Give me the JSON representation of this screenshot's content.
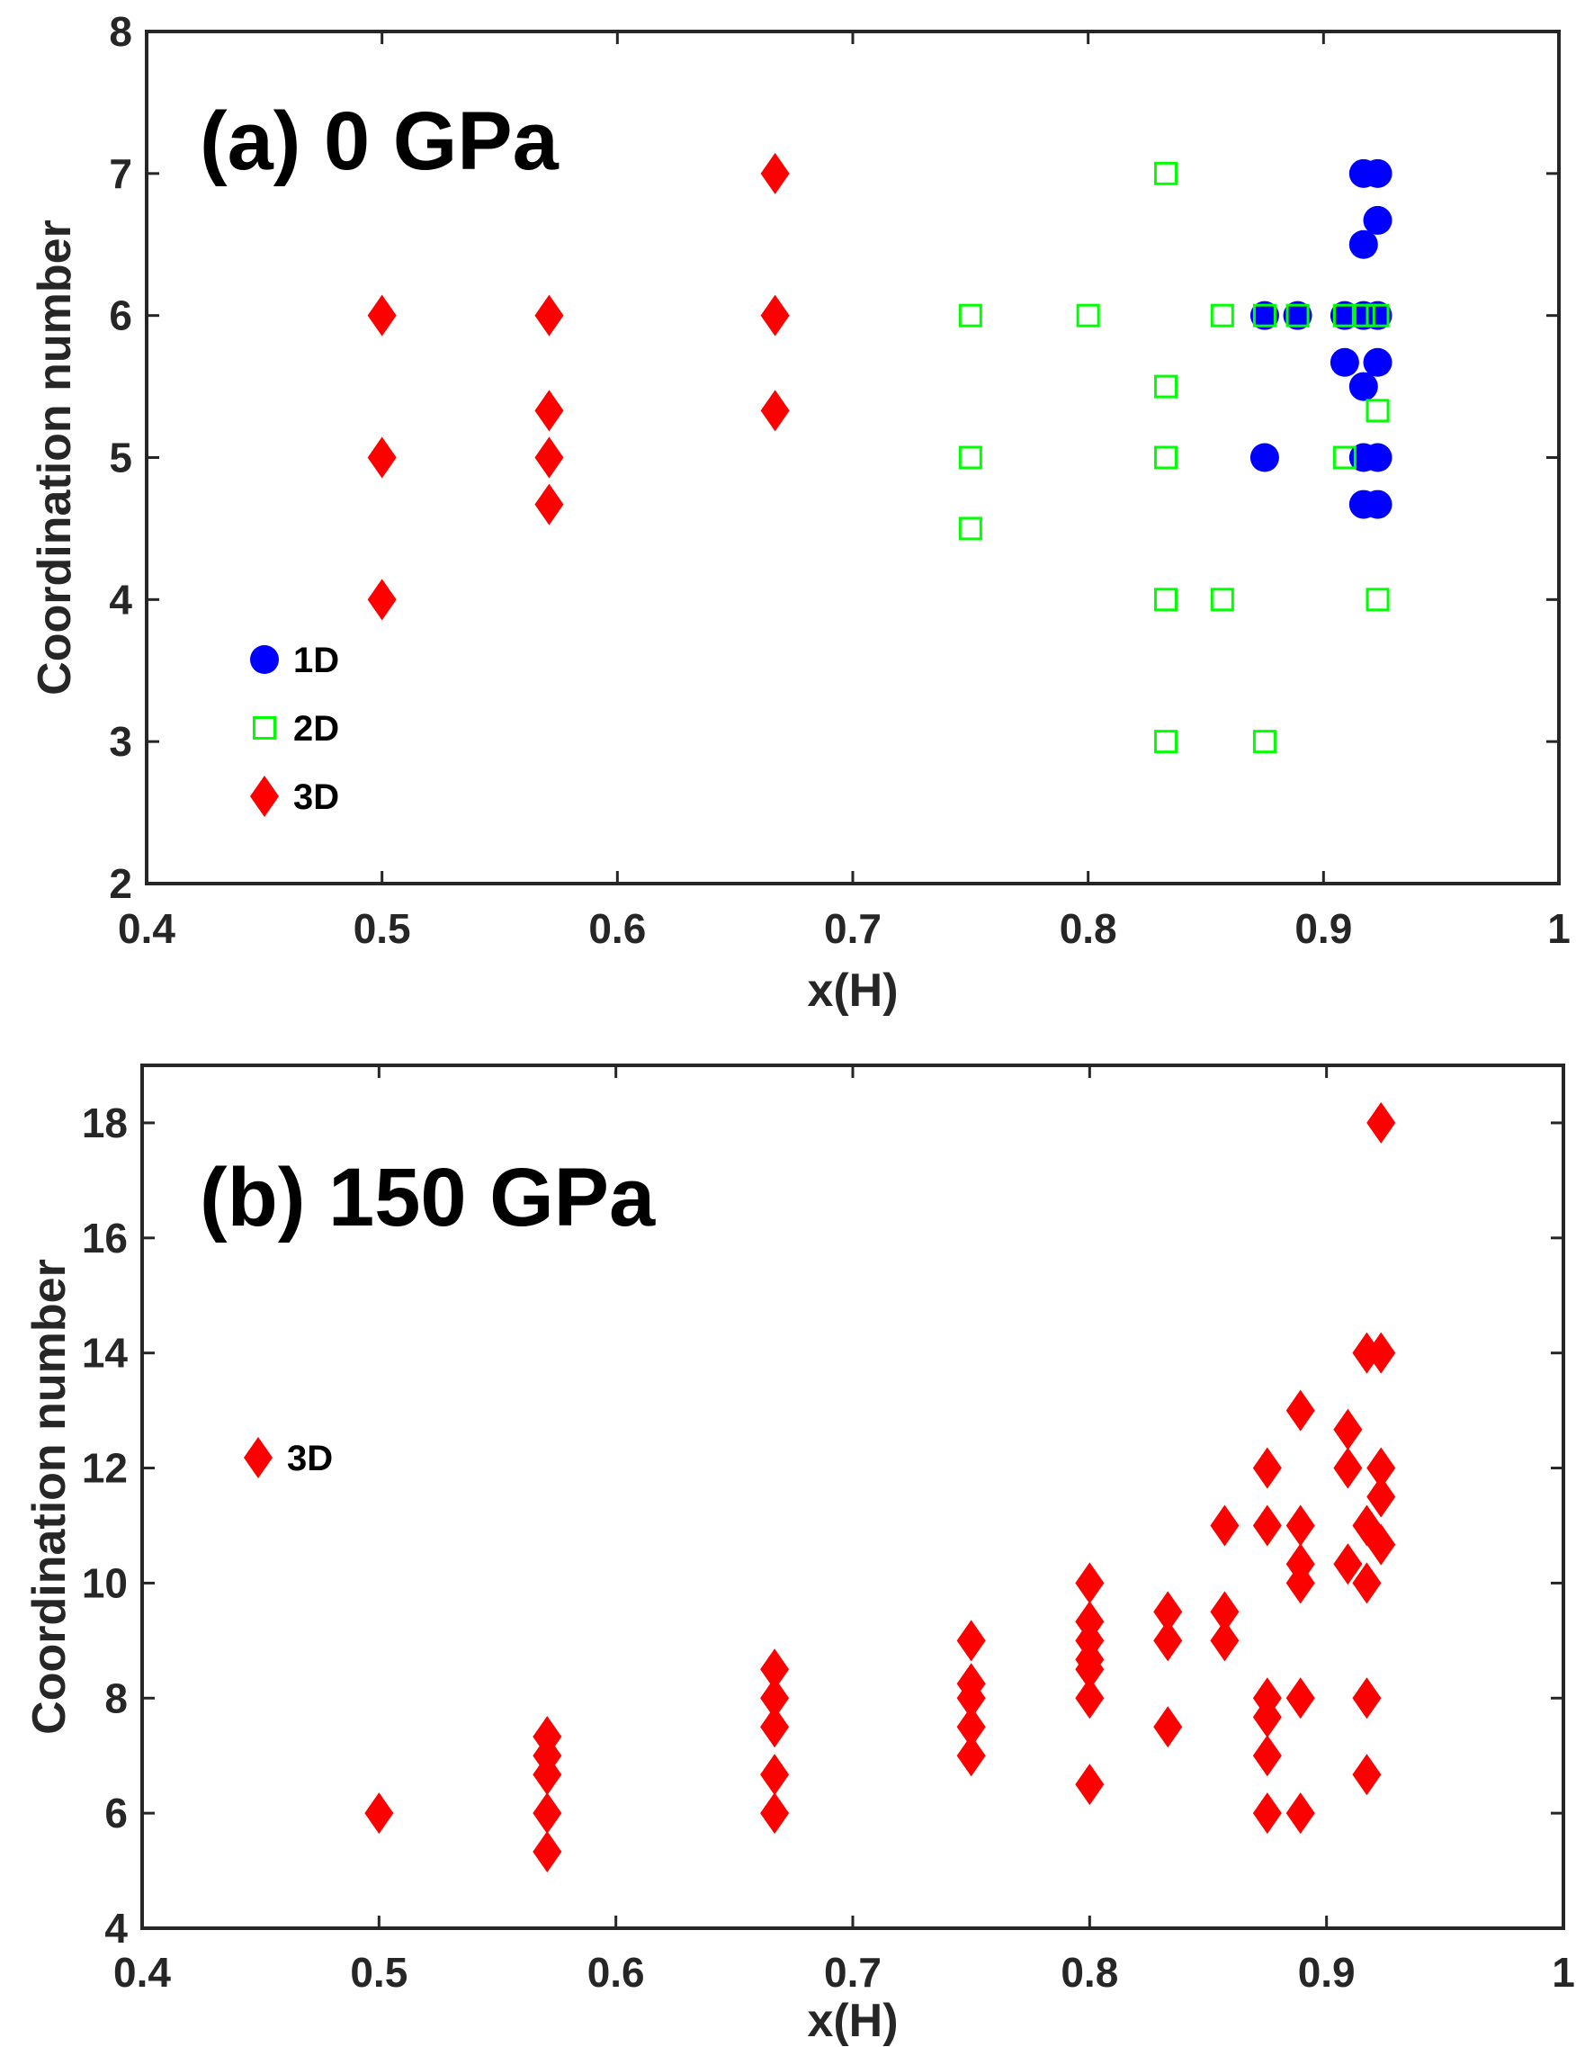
{
  "colors": {
    "blue": "#0000ff",
    "green": "#00ff00",
    "red": "#ff0000",
    "axis": "#262626"
  },
  "chart_data": [
    {
      "type": "scatter",
      "title": "(a) 0 GPa",
      "xlabel": "x(H)",
      "ylabel": "Coordination number",
      "xlim": [
        0.4,
        1
      ],
      "ylim": [
        2,
        8
      ],
      "xticks": [
        "0.4",
        "0.5",
        "0.6",
        "0.7",
        "0.8",
        "0.9",
        "1"
      ],
      "yticks": [
        "2",
        "3",
        "4",
        "5",
        "6",
        "7",
        "8"
      ],
      "legend_position": "bottom-left",
      "series": [
        {
          "name": "1D",
          "marker": "circle",
          "points": [
            [
              0.875,
              6
            ],
            [
              0.875,
              5
            ],
            [
              0.889,
              6
            ],
            [
              0.909,
              6
            ],
            [
              0.909,
              5.67
            ],
            [
              0.917,
              7
            ],
            [
              0.917,
              6.5
            ],
            [
              0.917,
              6
            ],
            [
              0.917,
              5.5
            ],
            [
              0.917,
              5
            ],
            [
              0.917,
              4.67
            ],
            [
              0.923,
              7
            ],
            [
              0.923,
              6.67
            ],
            [
              0.923,
              6
            ],
            [
              0.923,
              5.67
            ],
            [
              0.923,
              5
            ],
            [
              0.923,
              4.67
            ]
          ]
        },
        {
          "name": "2D",
          "marker": "square",
          "points": [
            [
              0.75,
              6
            ],
            [
              0.75,
              5
            ],
            [
              0.75,
              4.5
            ],
            [
              0.8,
              6
            ],
            [
              0.833,
              7
            ],
            [
              0.833,
              5.5
            ],
            [
              0.833,
              5
            ],
            [
              0.833,
              4
            ],
            [
              0.833,
              3
            ],
            [
              0.857,
              6
            ],
            [
              0.857,
              4
            ],
            [
              0.875,
              6
            ],
            [
              0.875,
              3
            ],
            [
              0.889,
              6
            ],
            [
              0.909,
              6
            ],
            [
              0.909,
              5
            ],
            [
              0.917,
              6
            ],
            [
              0.923,
              6
            ],
            [
              0.923,
              5.33
            ],
            [
              0.923,
              4
            ]
          ]
        },
        {
          "name": "3D",
          "marker": "diamond",
          "points": [
            [
              0.5,
              6
            ],
            [
              0.5,
              5
            ],
            [
              0.5,
              4
            ],
            [
              0.571,
              6
            ],
            [
              0.571,
              5.33
            ],
            [
              0.571,
              5
            ],
            [
              0.571,
              4.67
            ],
            [
              0.667,
              7
            ],
            [
              0.667,
              6
            ],
            [
              0.667,
              5.33
            ]
          ]
        }
      ]
    },
    {
      "type": "scatter",
      "title": "(b) 150 GPa",
      "xlabel": "x(H)",
      "ylabel": "Coordination number",
      "xlim": [
        0.4,
        1
      ],
      "ylim": [
        4,
        19
      ],
      "xticks": [
        "0.4",
        "0.5",
        "0.6",
        "0.7",
        "0.8",
        "0.9",
        "1"
      ],
      "yticks": [
        "4",
        "6",
        "8",
        "10",
        "12",
        "14",
        "16",
        "18"
      ],
      "legend_position": "middle-left",
      "series": [
        {
          "name": "3D",
          "marker": "diamond",
          "points": [
            [
              0.5,
              6
            ],
            [
              0.571,
              7.33
            ],
            [
              0.571,
              7
            ],
            [
              0.571,
              6.67
            ],
            [
              0.571,
              6
            ],
            [
              0.571,
              5.33
            ],
            [
              0.667,
              8.5
            ],
            [
              0.667,
              8
            ],
            [
              0.667,
              7.5
            ],
            [
              0.667,
              6.67
            ],
            [
              0.667,
              6
            ],
            [
              0.75,
              9
            ],
            [
              0.75,
              8.25
            ],
            [
              0.75,
              8
            ],
            [
              0.75,
              7.5
            ],
            [
              0.75,
              7
            ],
            [
              0.8,
              10
            ],
            [
              0.8,
              9.33
            ],
            [
              0.8,
              9
            ],
            [
              0.8,
              8.67
            ],
            [
              0.8,
              8.5
            ],
            [
              0.8,
              8
            ],
            [
              0.8,
              6.5
            ],
            [
              0.833,
              9.5
            ],
            [
              0.833,
              9
            ],
            [
              0.833,
              7.5
            ],
            [
              0.857,
              11
            ],
            [
              0.857,
              9.5
            ],
            [
              0.857,
              9
            ],
            [
              0.875,
              12
            ],
            [
              0.875,
              11
            ],
            [
              0.875,
              8
            ],
            [
              0.875,
              7.67
            ],
            [
              0.875,
              7
            ],
            [
              0.875,
              6
            ],
            [
              0.889,
              13
            ],
            [
              0.889,
              11
            ],
            [
              0.889,
              10.33
            ],
            [
              0.889,
              10
            ],
            [
              0.889,
              8
            ],
            [
              0.889,
              6
            ],
            [
              0.909,
              12.67
            ],
            [
              0.909,
              12
            ],
            [
              0.909,
              10.33
            ],
            [
              0.917,
              14
            ],
            [
              0.917,
              11
            ],
            [
              0.917,
              10
            ],
            [
              0.917,
              8
            ],
            [
              0.917,
              6.67
            ],
            [
              0.923,
              18
            ],
            [
              0.923,
              14
            ],
            [
              0.923,
              12
            ],
            [
              0.923,
              11.5
            ],
            [
              0.923,
              10.67
            ]
          ]
        }
      ]
    }
  ]
}
